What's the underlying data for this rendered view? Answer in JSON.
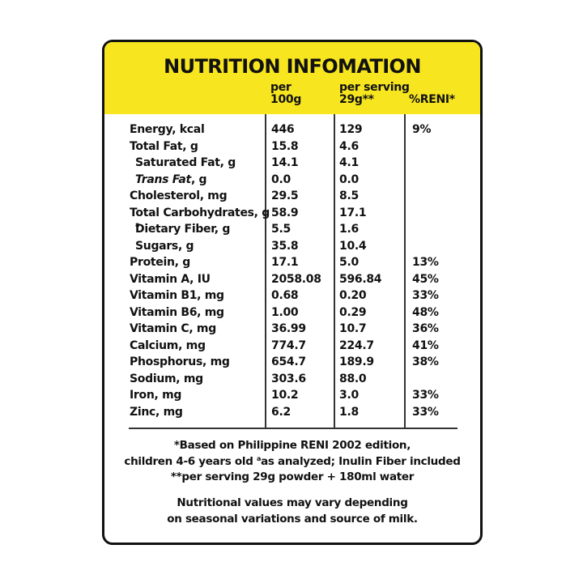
{
  "panel": {
    "title": "NUTRITION INFOMATION",
    "col1_header": [
      "per",
      "100g"
    ],
    "col2_header": [
      "per serving",
      "29g**"
    ],
    "col3_header": "%RENI*"
  },
  "rows": [
    {
      "name": "Energy, kcal",
      "v1": "446",
      "v2": "129",
      "v3": "9%"
    },
    {
      "name": "Total Fat, g",
      "v1": "15.8",
      "v2": "4.6",
      "v3": ""
    },
    {
      "name": "Saturated Fat, g",
      "v1": "14.1",
      "v2": "4.1",
      "v3": ""
    },
    {
      "name_italic": "Trans Fat",
      "name_rest": ", g",
      "v1": "0.0",
      "v2": "0.0",
      "v3": ""
    },
    {
      "name": "Cholesterol, mg",
      "v1": "29.5",
      "v2": "8.5",
      "v3": ""
    },
    {
      "name": "Total Carbohydrates, g",
      "v1": "58.9",
      "v2": "17.1",
      "v3": ""
    },
    {
      "name_sup": "a",
      "name_rest": "Dietary Fiber, g",
      "v1": "5.5",
      "v2": "1.6",
      "v3": ""
    },
    {
      "name": "Sugars, g",
      "v1": "35.8",
      "v2": "10.4",
      "v3": ""
    },
    {
      "name": "Protein, g",
      "v1": "17.1",
      "v2": "5.0",
      "v3": "13%"
    },
    {
      "name": "Vitamin A, IU",
      "v1": "2058.08",
      "v2": "596.84",
      "v3": "45%"
    },
    {
      "name": "Vitamin B1, mg",
      "v1": "0.68",
      "v2": "0.20",
      "v3": "33%"
    },
    {
      "name": "Vitamin B6, mg",
      "v1": "1.00",
      "v2": "0.29",
      "v3": "48%"
    },
    {
      "name": "Vitamin C, mg",
      "v1": "36.99",
      "v2": "10.7",
      "v3": "36%"
    },
    {
      "name": "Calcium, mg",
      "v1": "774.7",
      "v2": "224.7",
      "v3": "41%"
    },
    {
      "name": "Phosphorus, mg",
      "v1": "654.7",
      "v2": "189.9",
      "v3": "38%"
    },
    {
      "name": "Sodium, mg",
      "v1": "303.6",
      "v2": "88.0",
      "v3": ""
    },
    {
      "name": "Iron, mg",
      "v1": "10.2",
      "v2": "3.0",
      "v3": "33%"
    },
    {
      "name": "Zinc, mg",
      "v1": "6.2",
      "v2": "1.8",
      "v3": "33%"
    }
  ],
  "footer": {
    "line1": "*Based on Philippine RENI 2002 edition,",
    "line2_a": "children 4-6 years old ",
    "line2_sup": "a",
    "line2_b": "as analyzed; Inulin Fiber included",
    "line3": "**per serving 29g powder + 180ml water",
    "line4": "Nutritional values may vary depending",
    "line5": "on seasonal variations and source of milk."
  },
  "colors": {
    "header_bg": "#f7e51f",
    "border": "#111111"
  }
}
